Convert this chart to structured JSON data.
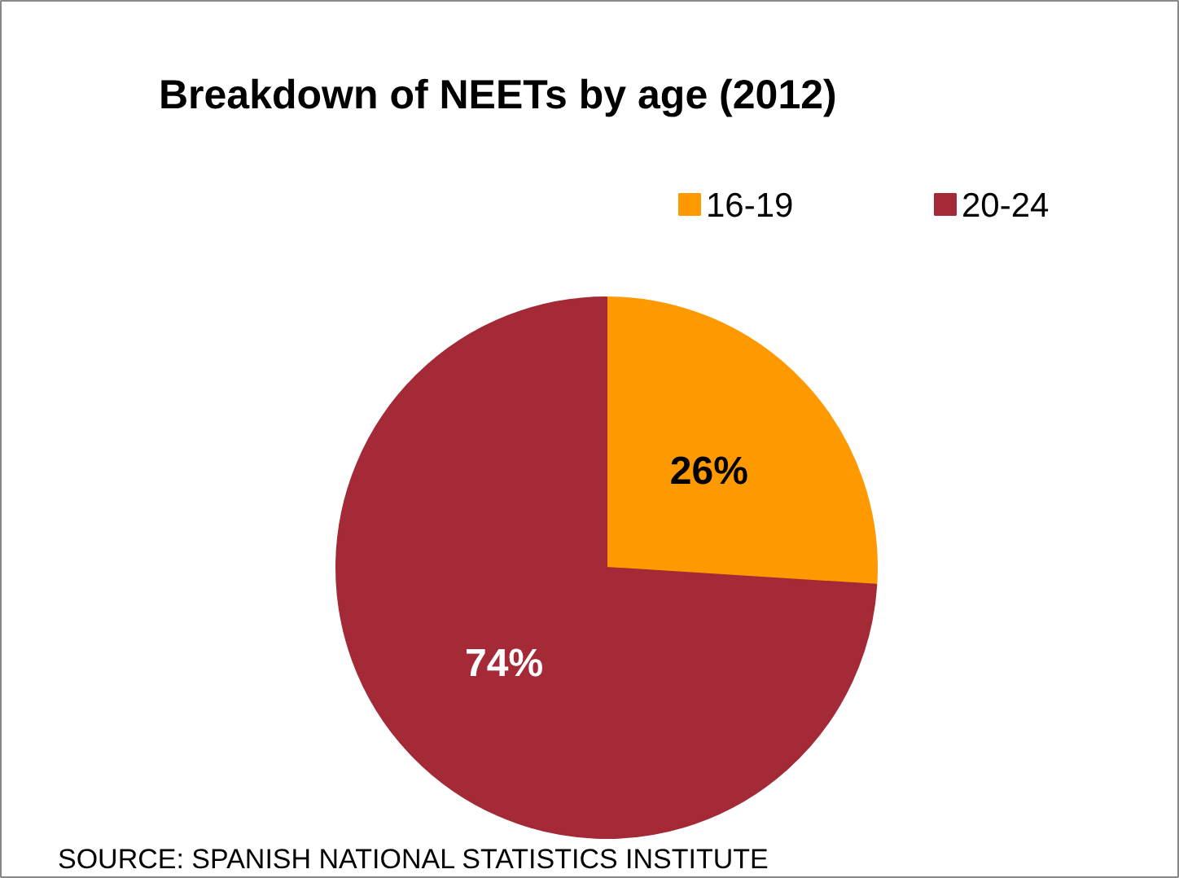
{
  "chart_data": {
    "type": "pie",
    "title": "Breakdown of NEETs by age (2012)",
    "categories": [
      "16-19",
      "20-24"
    ],
    "values": [
      26,
      74
    ],
    "colors": [
      "#ff9900",
      "#a32a36"
    ],
    "value_labels": [
      "26%",
      "74%"
    ],
    "legend": "top right",
    "annotations": [
      "SOURCE: SPANISH NATIONAL STATISTICS INSTITUTE"
    ]
  }
}
